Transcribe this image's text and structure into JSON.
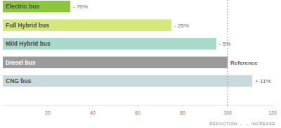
{
  "chart_data": {
    "type": "bar",
    "orientation": "horizontal",
    "categories": [
      "Electric bus",
      "Full Hybrid bus",
      "Mild Hybrid bus",
      "Diesel bus",
      "CNG bus"
    ],
    "values": [
      30,
      75,
      95,
      100,
      111
    ],
    "annotations": [
      "- 70%",
      "- 25%",
      "- 5%",
      "Reference",
      "+ 11%"
    ],
    "colors": [
      "#8cc63f",
      "#d6e87c",
      "#a9d9cb",
      "#9b9b9b",
      "#c9dadf"
    ],
    "reference_line": 100,
    "xlabel": "REDUCTION ← → INCREASE",
    "xlim": [
      0,
      120
    ],
    "xticks": [
      20,
      40,
      60,
      80,
      100,
      120
    ],
    "grid": false
  }
}
